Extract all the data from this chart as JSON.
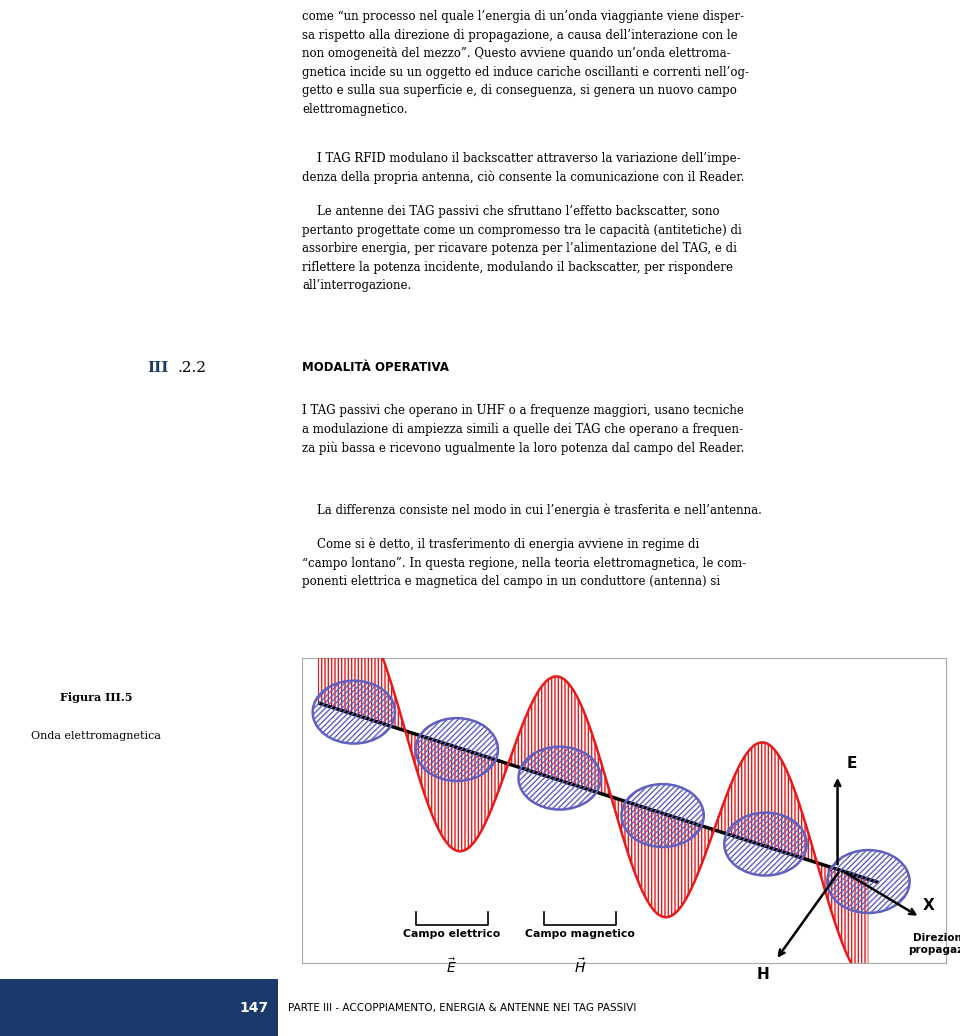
{
  "background_color": "#ffffff",
  "text_color": "#000000",
  "page_number": "147",
  "footer_text": "PARTE III - ACCOPPIAMENTO, ENERGIA & ANTENNE NEI TAG PASSIVI",
  "footer_bg": "#1a3a6b",
  "section_label": "III",
  "section_num": ".2.2",
  "section_title": "MODALITÀ OPERATIVA",
  "fig_label": "Figura III.5",
  "fig_caption": "Onda elettromagnetica",
  "para1": "come “un processo nel quale l’energia di un’onda viaggiante viene disper-\nsa rispetto alla direzione di propagazione, a causa dell’interazione con le\nnon omogeneità del mezzo”. Questo avviene quando un’onda elettroma-\ngnetica incide su un oggetto ed induce cariche oscillanti e correnti nell’og-\ngetto e sulla sua superficie e, di conseguenza, si genera un nuovo campo\nelettromagnetico.",
  "para2": "    I TAG RFID modulano il backscatter attraverso la variazione dell’impe-\ndenza della propria antenna, ciò consente la comunicazione con il Reader.",
  "para3": "    Le antenne dei TAG passivi che sfruttano l’effetto backscatter, sono\npertanto progettate come un compromesso tra le capacità (antitetiche) di\nassorbire energia, per ricavare potenza per l’alimentazione del TAG, e di\nriflettere la potenza incidente, modulando il backscatter, per rispondere\nall’interrogazione.",
  "para4": "I TAG passivi che operano in UHF o a frequenze maggiori, usano tecniche\na modulazione di ampiezza simili a quelle dei TAG che operano a frequen-\nza più bassa e ricevono ugualmente la loro potenza dal campo del Reader.",
  "para5": "    La differenza consiste nel modo in cui l’energia è trasferita e nell’antenna.",
  "para6": "    Come si è detto, il trasferimento di energia avviene in regime di\n“campo lontano”. In questa regione, nella teoria elettromagnetica, le com-\nponenti elettrica e magnetica del campo in un conduttore (antenna) si",
  "red_color": "#e8191a",
  "blue_color": "#6060c0",
  "black_color": "#000000"
}
